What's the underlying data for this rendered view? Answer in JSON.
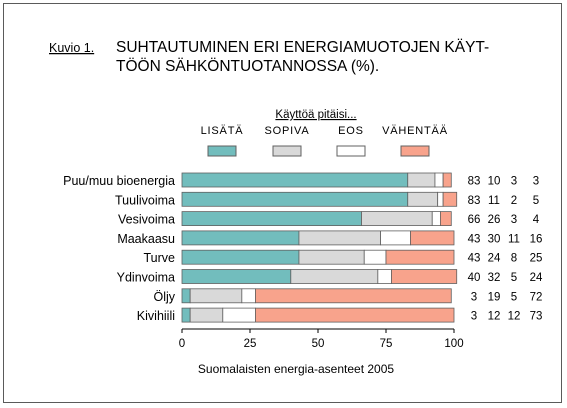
{
  "caption_label": "Kuvio 1.",
  "title_line1": "SUHTAUTUMINEN ERI ENERGIAMUOTOJEN KÄYT-",
  "title_line2": "TÖÖN SÄHKÖNTUOTANNOSSA (%).",
  "legend_title": "Käyttöä pitäisi...",
  "source": "Suomalaisten energia-asenteet 2005",
  "colors": {
    "LISÄTÄ": "#72bdbd",
    "SOPIVA": "#d9d9d9",
    "EOS": "#ffffff",
    "VÄHENTÄÄ": "#f8a38c",
    "bar_stroke": "#606060"
  },
  "chart_data": {
    "type": "bar",
    "orientation": "horizontal",
    "stacked": true,
    "categories": [
      "Puu/muu bioenergia",
      "Tuulivoima",
      "Vesivoima",
      "Maakaasu",
      "Turve",
      "Ydinvoima",
      "Öljy",
      "Kivihiili"
    ],
    "series": [
      {
        "name": "LISÄTÄ",
        "values": [
          83,
          83,
          66,
          43,
          43,
          40,
          3,
          3
        ]
      },
      {
        "name": "SOPIVA",
        "values": [
          10,
          11,
          26,
          30,
          24,
          32,
          19,
          12
        ]
      },
      {
        "name": "EOS",
        "values": [
          3,
          2,
          3,
          11,
          8,
          5,
          5,
          12
        ]
      },
      {
        "name": "VÄHENTÄÄ",
        "values": [
          3,
          5,
          4,
          16,
          25,
          24,
          72,
          73
        ]
      }
    ],
    "xlim": [
      0,
      100
    ],
    "xticks": [
      0,
      25,
      50,
      75,
      100
    ],
    "grid": false,
    "legend_position": "top"
  }
}
